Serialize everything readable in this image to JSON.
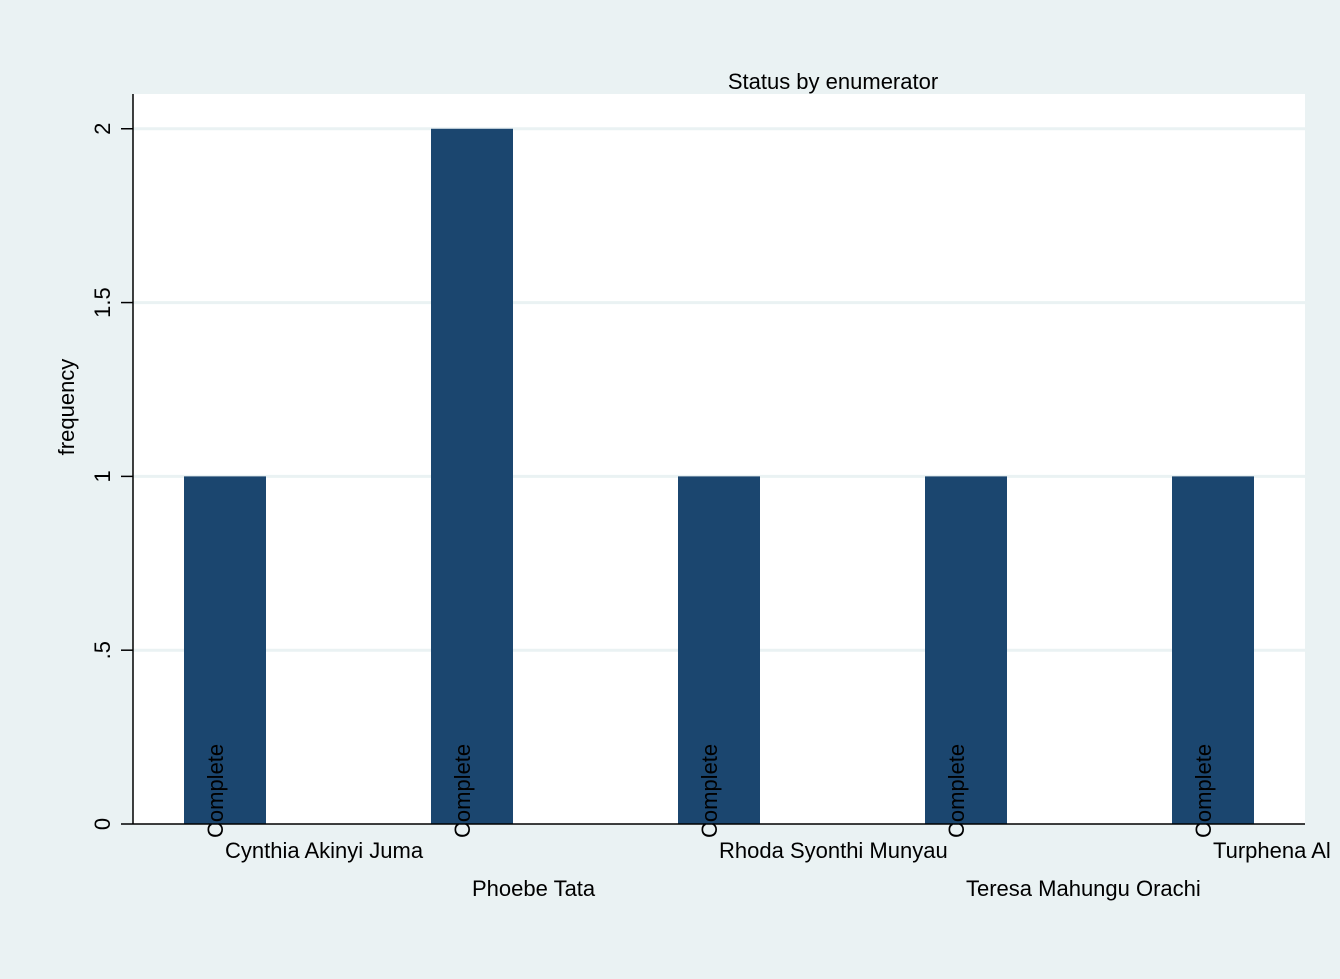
{
  "chart_data": {
    "type": "bar",
    "title": "Status by enumerator",
    "xlabel": "",
    "ylabel": "frequency",
    "categories": [
      "Cynthia Akinyi Juma",
      "Phoebe Tata",
      "Rhoda Syonthi Munyau",
      "Teresa Mahungu Orachi",
      "Turphena Al"
    ],
    "values": [
      1,
      2,
      1,
      1,
      1
    ],
    "bar_labels": [
      "Complete",
      "Complete",
      "Complete",
      "Complete",
      "Complete"
    ],
    "ylim": [
      0,
      2.1
    ],
    "yticks": [
      {
        "value": 0,
        "label": "0"
      },
      {
        "value": 0.5,
        "label": ".5"
      },
      {
        "value": 1,
        "label": "1"
      },
      {
        "value": 1.5,
        "label": "1.5"
      },
      {
        "value": 2,
        "label": "2"
      }
    ],
    "grid": true,
    "legend": "none",
    "colors": {
      "bar": "#1b466f",
      "background": "#eaf2f3",
      "plot_background": "#ffffff",
      "grid": "#eaf2f3",
      "axis": "#000000"
    }
  }
}
